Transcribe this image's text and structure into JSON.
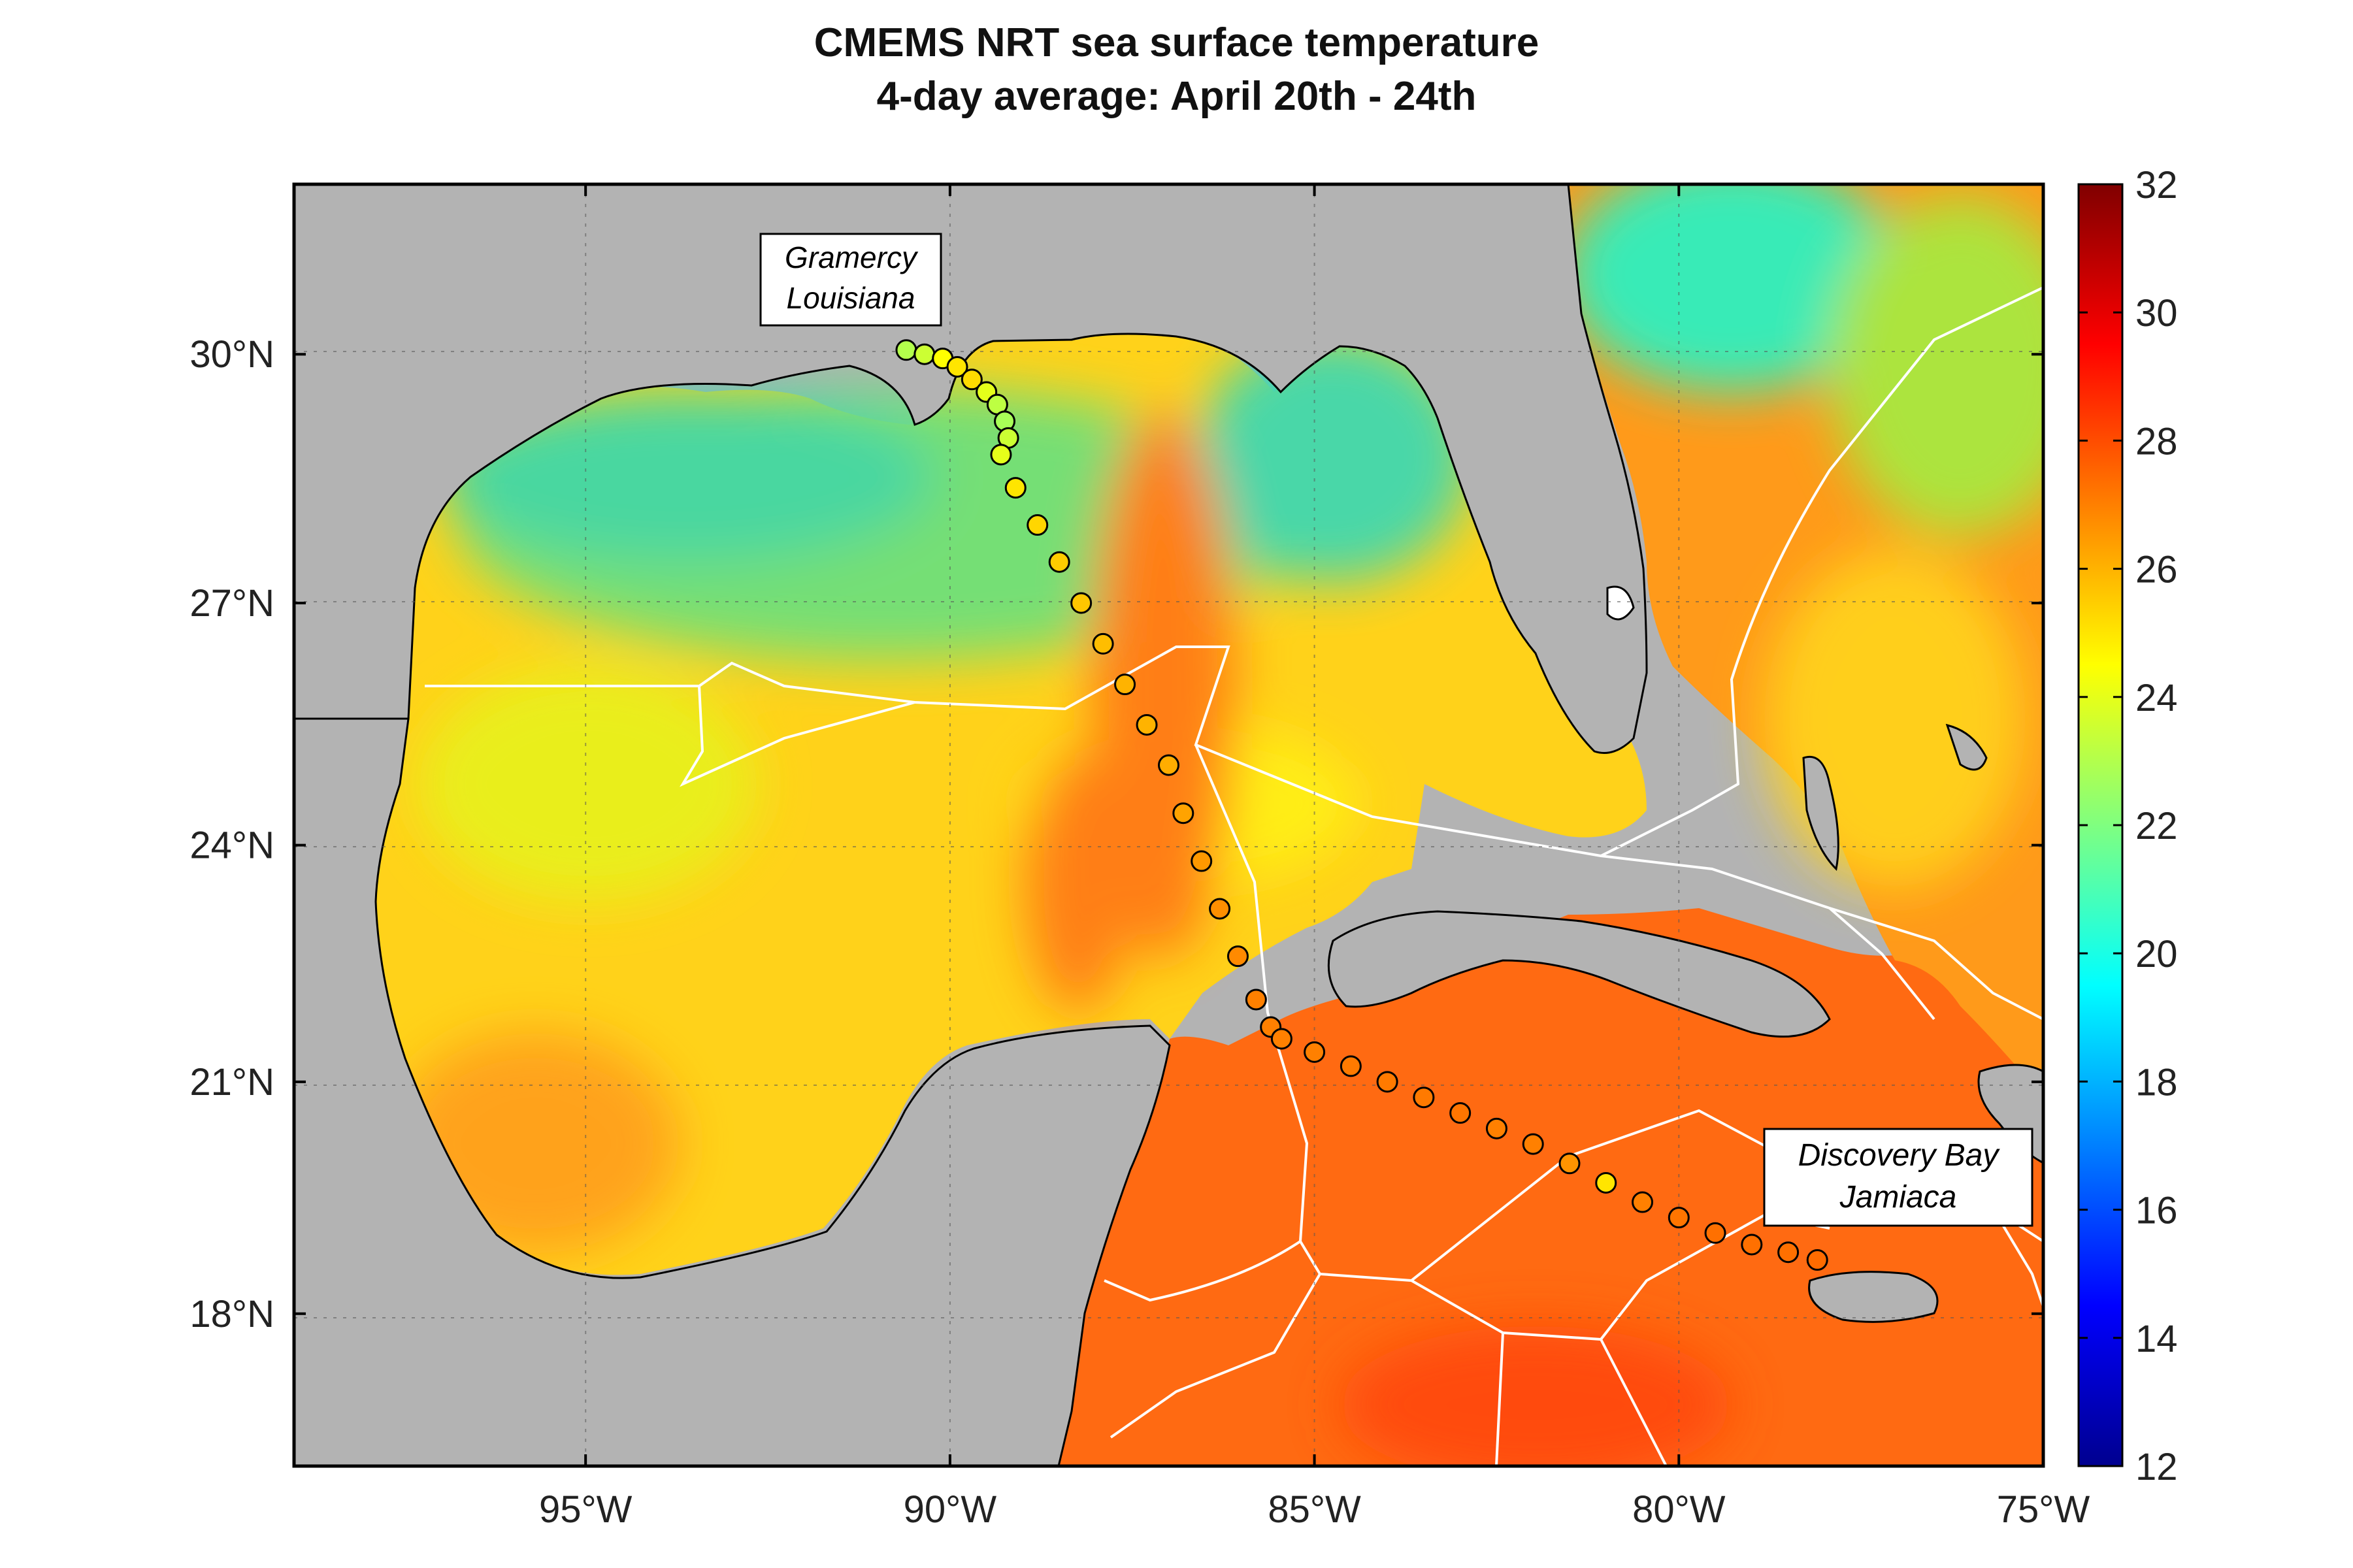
{
  "title_line1": "CMEMS NRT sea surface temperature",
  "title_line2": "4-day average: April 20th - 24th",
  "map": {
    "lon_range": [
      -99,
      -75
    ],
    "lat_range": [
      16,
      32
    ],
    "x_ticks": [
      {
        "lon": -95,
        "label": "95°W"
      },
      {
        "lon": -90,
        "label": "90°W"
      },
      {
        "lon": -85,
        "label": "85°W"
      },
      {
        "lon": -80,
        "label": "80°W"
      },
      {
        "lon": -75,
        "label": "75°W"
      }
    ],
    "y_ticks": [
      {
        "lat": 18,
        "label": "18°N"
      },
      {
        "lat": 21,
        "label": "21°N"
      },
      {
        "lat": 24,
        "label": "24°N"
      },
      {
        "lat": 27,
        "label": "27°N"
      },
      {
        "lat": 30,
        "label": "30°N"
      }
    ],
    "grid": true,
    "land_color": "#b3b3b3",
    "eez_line_color": "#ffffff"
  },
  "labels": {
    "start": {
      "line1": "Gramercy",
      "line2": "Louisiana"
    },
    "end": {
      "line1": "Discovery Bay",
      "line2": "Jamiaca"
    }
  },
  "colorbar": {
    "min": 12,
    "max": 32,
    "ticks": [
      12,
      14,
      16,
      18,
      20,
      22,
      24,
      26,
      28,
      30,
      32
    ],
    "colormap": "jet"
  },
  "chart_data": {
    "type": "scatter",
    "x": [
      -90.6,
      -90.35,
      -90.1,
      -89.9,
      -89.7,
      -89.5,
      -89.35,
      -89.25,
      -89.2,
      -89.3,
      -89.1,
      -88.8,
      -88.5,
      -88.2,
      -87.9,
      -87.6,
      -87.3,
      -87.0,
      -86.8,
      -86.55,
      -86.3,
      -86.05,
      -85.8,
      -85.6,
      -85.45,
      -85.0,
      -84.5,
      -84.0,
      -83.5,
      -83.0,
      -82.5,
      -82.0,
      -81.5,
      -81.0,
      -80.5,
      -80.0,
      -79.5,
      -79.0,
      -78.5,
      -78.1
    ],
    "y": [
      30.05,
      30.0,
      29.95,
      29.85,
      29.7,
      29.55,
      29.4,
      29.2,
      29.0,
      28.8,
      28.4,
      27.95,
      27.5,
      27.0,
      26.5,
      26.0,
      25.5,
      25.0,
      24.4,
      23.8,
      23.2,
      22.6,
      22.05,
      21.7,
      21.55,
      21.38,
      21.2,
      21.0,
      20.8,
      20.6,
      20.4,
      20.2,
      19.95,
      19.7,
      19.45,
      19.25,
      19.05,
      18.9,
      18.8,
      18.7
    ],
    "values": [
      23.0,
      23.5,
      24.5,
      25.0,
      25.2,
      24.0,
      23.2,
      22.8,
      23.5,
      24.0,
      25.0,
      25.3,
      25.5,
      25.6,
      25.8,
      26.0,
      26.0,
      26.1,
      26.3,
      26.5,
      26.7,
      26.8,
      27.0,
      27.0,
      27.0,
      27.0,
      27.1,
      27.1,
      27.1,
      27.2,
      27.0,
      27.0,
      26.6,
      25.0,
      27.0,
      27.2,
      27.3,
      27.3,
      27.3,
      27.4
    ],
    "xlabel": "",
    "ylabel": "",
    "xlim": [
      -99,
      -75
    ],
    "ylim": [
      16,
      32
    ]
  }
}
